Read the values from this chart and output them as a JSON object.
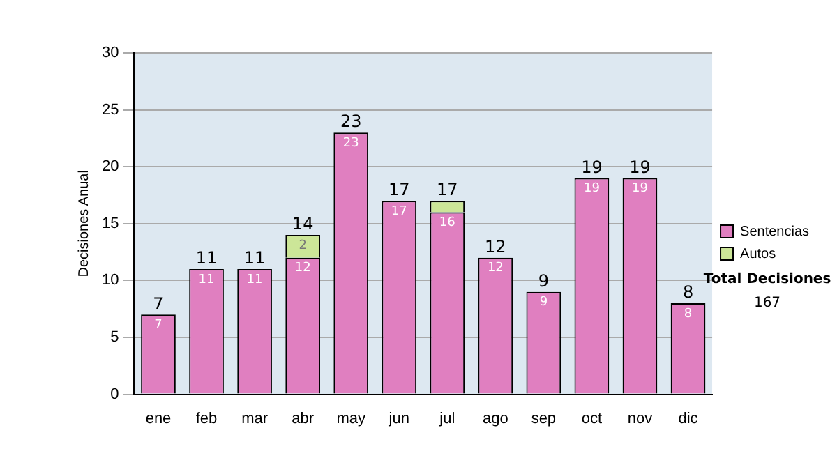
{
  "chart_data": {
    "type": "bar",
    "stacked": true,
    "ylabel": "Decisiones Anual",
    "categories": [
      "ene",
      "feb",
      "mar",
      "abr",
      "may",
      "jun",
      "jul",
      "ago",
      "sep",
      "oct",
      "nov",
      "dic"
    ],
    "series": [
      {
        "name": "Sentencias",
        "color": "#e07fc0",
        "values": [
          7,
          11,
          11,
          12,
          23,
          17,
          16,
          12,
          9,
          19,
          19,
          8
        ],
        "value_labels": [
          "7",
          "11",
          "11",
          "12",
          "23",
          "17",
          "16",
          "12",
          "9",
          "19",
          "19",
          "8"
        ]
      },
      {
        "name": "Autos",
        "color": "#cce698",
        "values": [
          0,
          0,
          0,
          2,
          0,
          0,
          1,
          0,
          0,
          0,
          0,
          0
        ],
        "value_labels": [
          null,
          null,
          null,
          "2",
          null,
          null,
          null,
          null,
          null,
          null,
          null,
          null
        ]
      }
    ],
    "totals": [
      "7",
      "11",
      "11",
      "14",
      "23",
      "17",
      "17",
      "12",
      "9",
      "19",
      "19",
      "8"
    ],
    "ylim": [
      0,
      30
    ],
    "yticks": [
      0,
      5,
      10,
      15,
      20,
      25,
      30
    ],
    "grid": "y",
    "legend": "right",
    "annotations": [
      "Total Decisiones",
      "167"
    ]
  }
}
